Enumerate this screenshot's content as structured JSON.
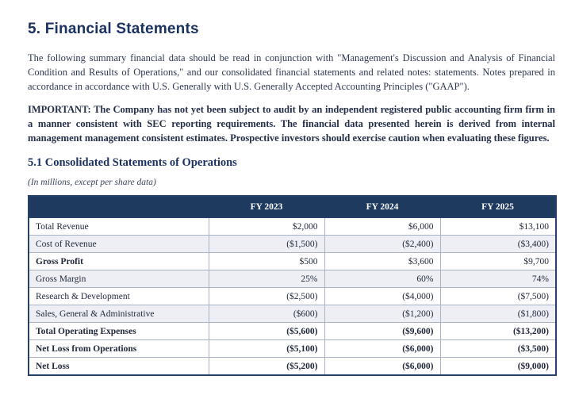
{
  "document": {
    "title": "5. Financial Statements",
    "intro_paragraph": "The following summary financial data should be read in conjunction with \"Management's Discussion and Analysis of Financial Condition and Results of Operations,\" and our consolidated financial statements and related notes: statements. Notes prepared in accordance in accordance with U.S. Generally with U.S. Generally Accepted Accounting Principles (\"GAAP\").",
    "important_label": "IMPORTANT:",
    "important_text": "The Company has not yet been subject to audit by an independent registered public accounting firm firm in a manner consistent with SEC reporting requirements. The financial data presented herein is derived from internal management management consistent estimates. Prospective investors should exercise caution when evaluating these figures.",
    "section_heading": "5.1 Consolidated Statements of Operations",
    "units_note": "(In millions, except per share data)"
  },
  "table": {
    "column_headers": [
      "",
      "FY 2023",
      "FY 2024",
      "FY 2025"
    ],
    "rows": [
      {
        "label": "Total Revenue",
        "values": [
          "$2,000",
          "$6,000",
          "$13,100"
        ]
      },
      {
        "label": "Cost of Revenue",
        "values": [
          "($1,500)",
          "($2,400)",
          "($3,400)"
        ]
      },
      {
        "label": "Gross Profit",
        "values": [
          "$500",
          "$3,600",
          "$9,700"
        ]
      },
      {
        "label": "Gross Margin",
        "values": [
          "25%",
          "60%",
          "74%"
        ]
      },
      {
        "label": "Research & Development",
        "values": [
          "($2,500)",
          "($4,000)",
          "($7,500)"
        ]
      },
      {
        "label": "Sales, General & Administrative",
        "values": [
          "($600)",
          "($1,200)",
          "($1,800)"
        ]
      },
      {
        "label": "Total Operating Expenses",
        "values": [
          "($5,600)",
          "($9,600)",
          "($13,200)"
        ]
      },
      {
        "label": "Net Loss from Operations",
        "values": [
          "($5,100)",
          "($6,000)",
          "($3,500)"
        ]
      },
      {
        "label": "Net Loss",
        "values": [
          "($5,200)",
          "($6,000)",
          "($9,000)"
        ]
      }
    ]
  },
  "colors": {
    "heading_navy": "#1b3261",
    "table_header_bg": "#1e3a5f",
    "table_header_text": "#ffffff",
    "body_text": "#2d3850",
    "shaded_row_bg": "#edeff4",
    "row_border": "#a9b3c3",
    "table_outer_border": "#24406b"
  }
}
